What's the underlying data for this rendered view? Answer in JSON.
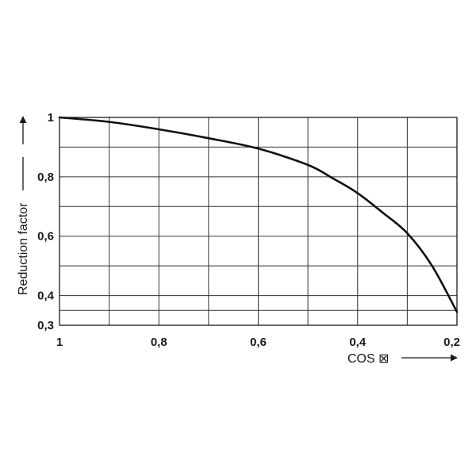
{
  "chart_data": {
    "type": "line",
    "xlabel": "COS ⊠",
    "ylabel": "Reduction factor",
    "xlim": [
      1,
      0.2
    ],
    "ylim": [
      0.3,
      1
    ],
    "x_ticks": [
      "1",
      "0,8",
      "0,6",
      "0,4",
      "0,2"
    ],
    "y_ticks": [
      "0,3",
      "0,4",
      "0,6",
      "0,8",
      "1"
    ],
    "x_grid": [
      1,
      0.9,
      0.8,
      0.7,
      0.6,
      0.5,
      0.4,
      0.3,
      0.2
    ],
    "y_grid": [
      0.3,
      0.35,
      0.4,
      0.5,
      0.6,
      0.7,
      0.8,
      0.9,
      1
    ],
    "grid": true,
    "series": [
      {
        "x": [
          1,
          0.9,
          0.8,
          0.7,
          0.6,
          0.5,
          0.45,
          0.4,
          0.35,
          0.3,
          0.25,
          0.2
        ],
        "y": [
          1,
          0.985,
          0.96,
          0.93,
          0.895,
          0.84,
          0.795,
          0.745,
          0.68,
          0.61,
          0.5,
          0.345
        ]
      }
    ]
  }
}
